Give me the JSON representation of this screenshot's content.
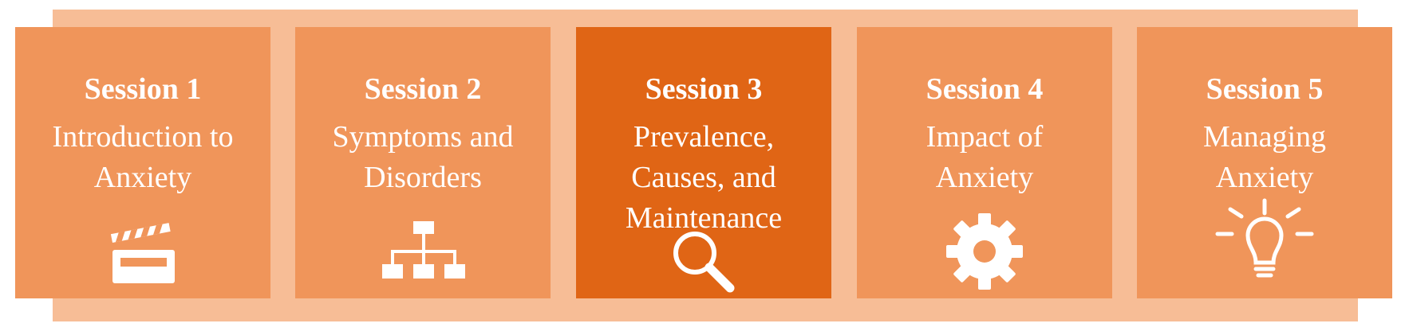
{
  "colors": {
    "band": "#f7bd96",
    "card": "#f0955a",
    "card_active": "#e06515",
    "text": "#ffffff"
  },
  "sessions": [
    {
      "title": "Session 1",
      "topic": [
        "Introduction to",
        "Anxiety"
      ],
      "icon": "clapperboard-icon",
      "active": false
    },
    {
      "title": "Session 2",
      "topic": [
        "Symptoms and",
        "Disorders"
      ],
      "icon": "hierarchy-icon",
      "active": false
    },
    {
      "title": "Session 3",
      "topic": [
        "Prevalence,",
        "Causes, and",
        "Maintenance"
      ],
      "icon": "magnifier-icon",
      "active": true
    },
    {
      "title": "Session 4",
      "topic": [
        "Impact of",
        "Anxiety"
      ],
      "icon": "gear-icon",
      "active": false
    },
    {
      "title": "Session 5",
      "topic": [
        "Managing",
        "Anxiety"
      ],
      "icon": "lightbulb-icon",
      "active": false
    }
  ]
}
